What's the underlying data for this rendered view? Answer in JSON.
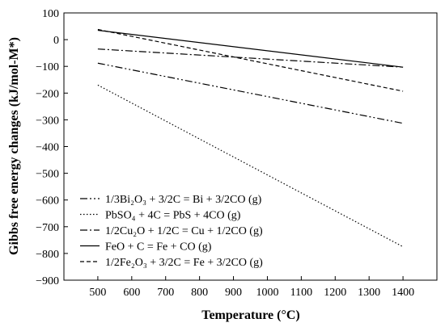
{
  "chart_data": {
    "type": "line",
    "title": "",
    "xlabel": "Temperature (°C)",
    "ylabel": "Gibbs free energy changes (kJ/mol-M*)",
    "xlim": [
      400,
      1500
    ],
    "ylim": [
      -900,
      100
    ],
    "xticks": [
      500,
      600,
      700,
      800,
      900,
      1000,
      1100,
      1200,
      1300,
      1400
    ],
    "yticks": [
      100,
      0,
      -100,
      -200,
      -300,
      -400,
      -500,
      -600,
      -700,
      -800,
      -900
    ],
    "grid": false,
    "legend_position": "bottom-left",
    "series": [
      {
        "name": "1/3Bi₂O₃ + 3/2C = Bi + 3/2CO (g)",
        "style": "dash-dot-dot",
        "x": [
          500,
          1400
        ],
        "y": [
          -88,
          -313
        ]
      },
      {
        "name": "PbSO₄ + 4C = PbS + 4CO (g)",
        "style": "dotted",
        "x": [
          500,
          1400
        ],
        "y": [
          -170,
          -775
        ]
      },
      {
        "name": "1/2Cu₂O + 1/2C = Cu + 1/2CO (g)",
        "style": "dash-dot",
        "x": [
          500,
          1400
        ],
        "y": [
          -35,
          -103
        ]
      },
      {
        "name": "FeO + C = Fe + CO (g)",
        "style": "solid",
        "x": [
          500,
          1400
        ],
        "y": [
          35,
          -103
        ]
      },
      {
        "name": "1/2Fe₂O₃ + 3/2C = Fe + 3/2CO (g)",
        "style": "dashed",
        "x": [
          500,
          1400
        ],
        "y": [
          38,
          -193
        ]
      }
    ]
  }
}
